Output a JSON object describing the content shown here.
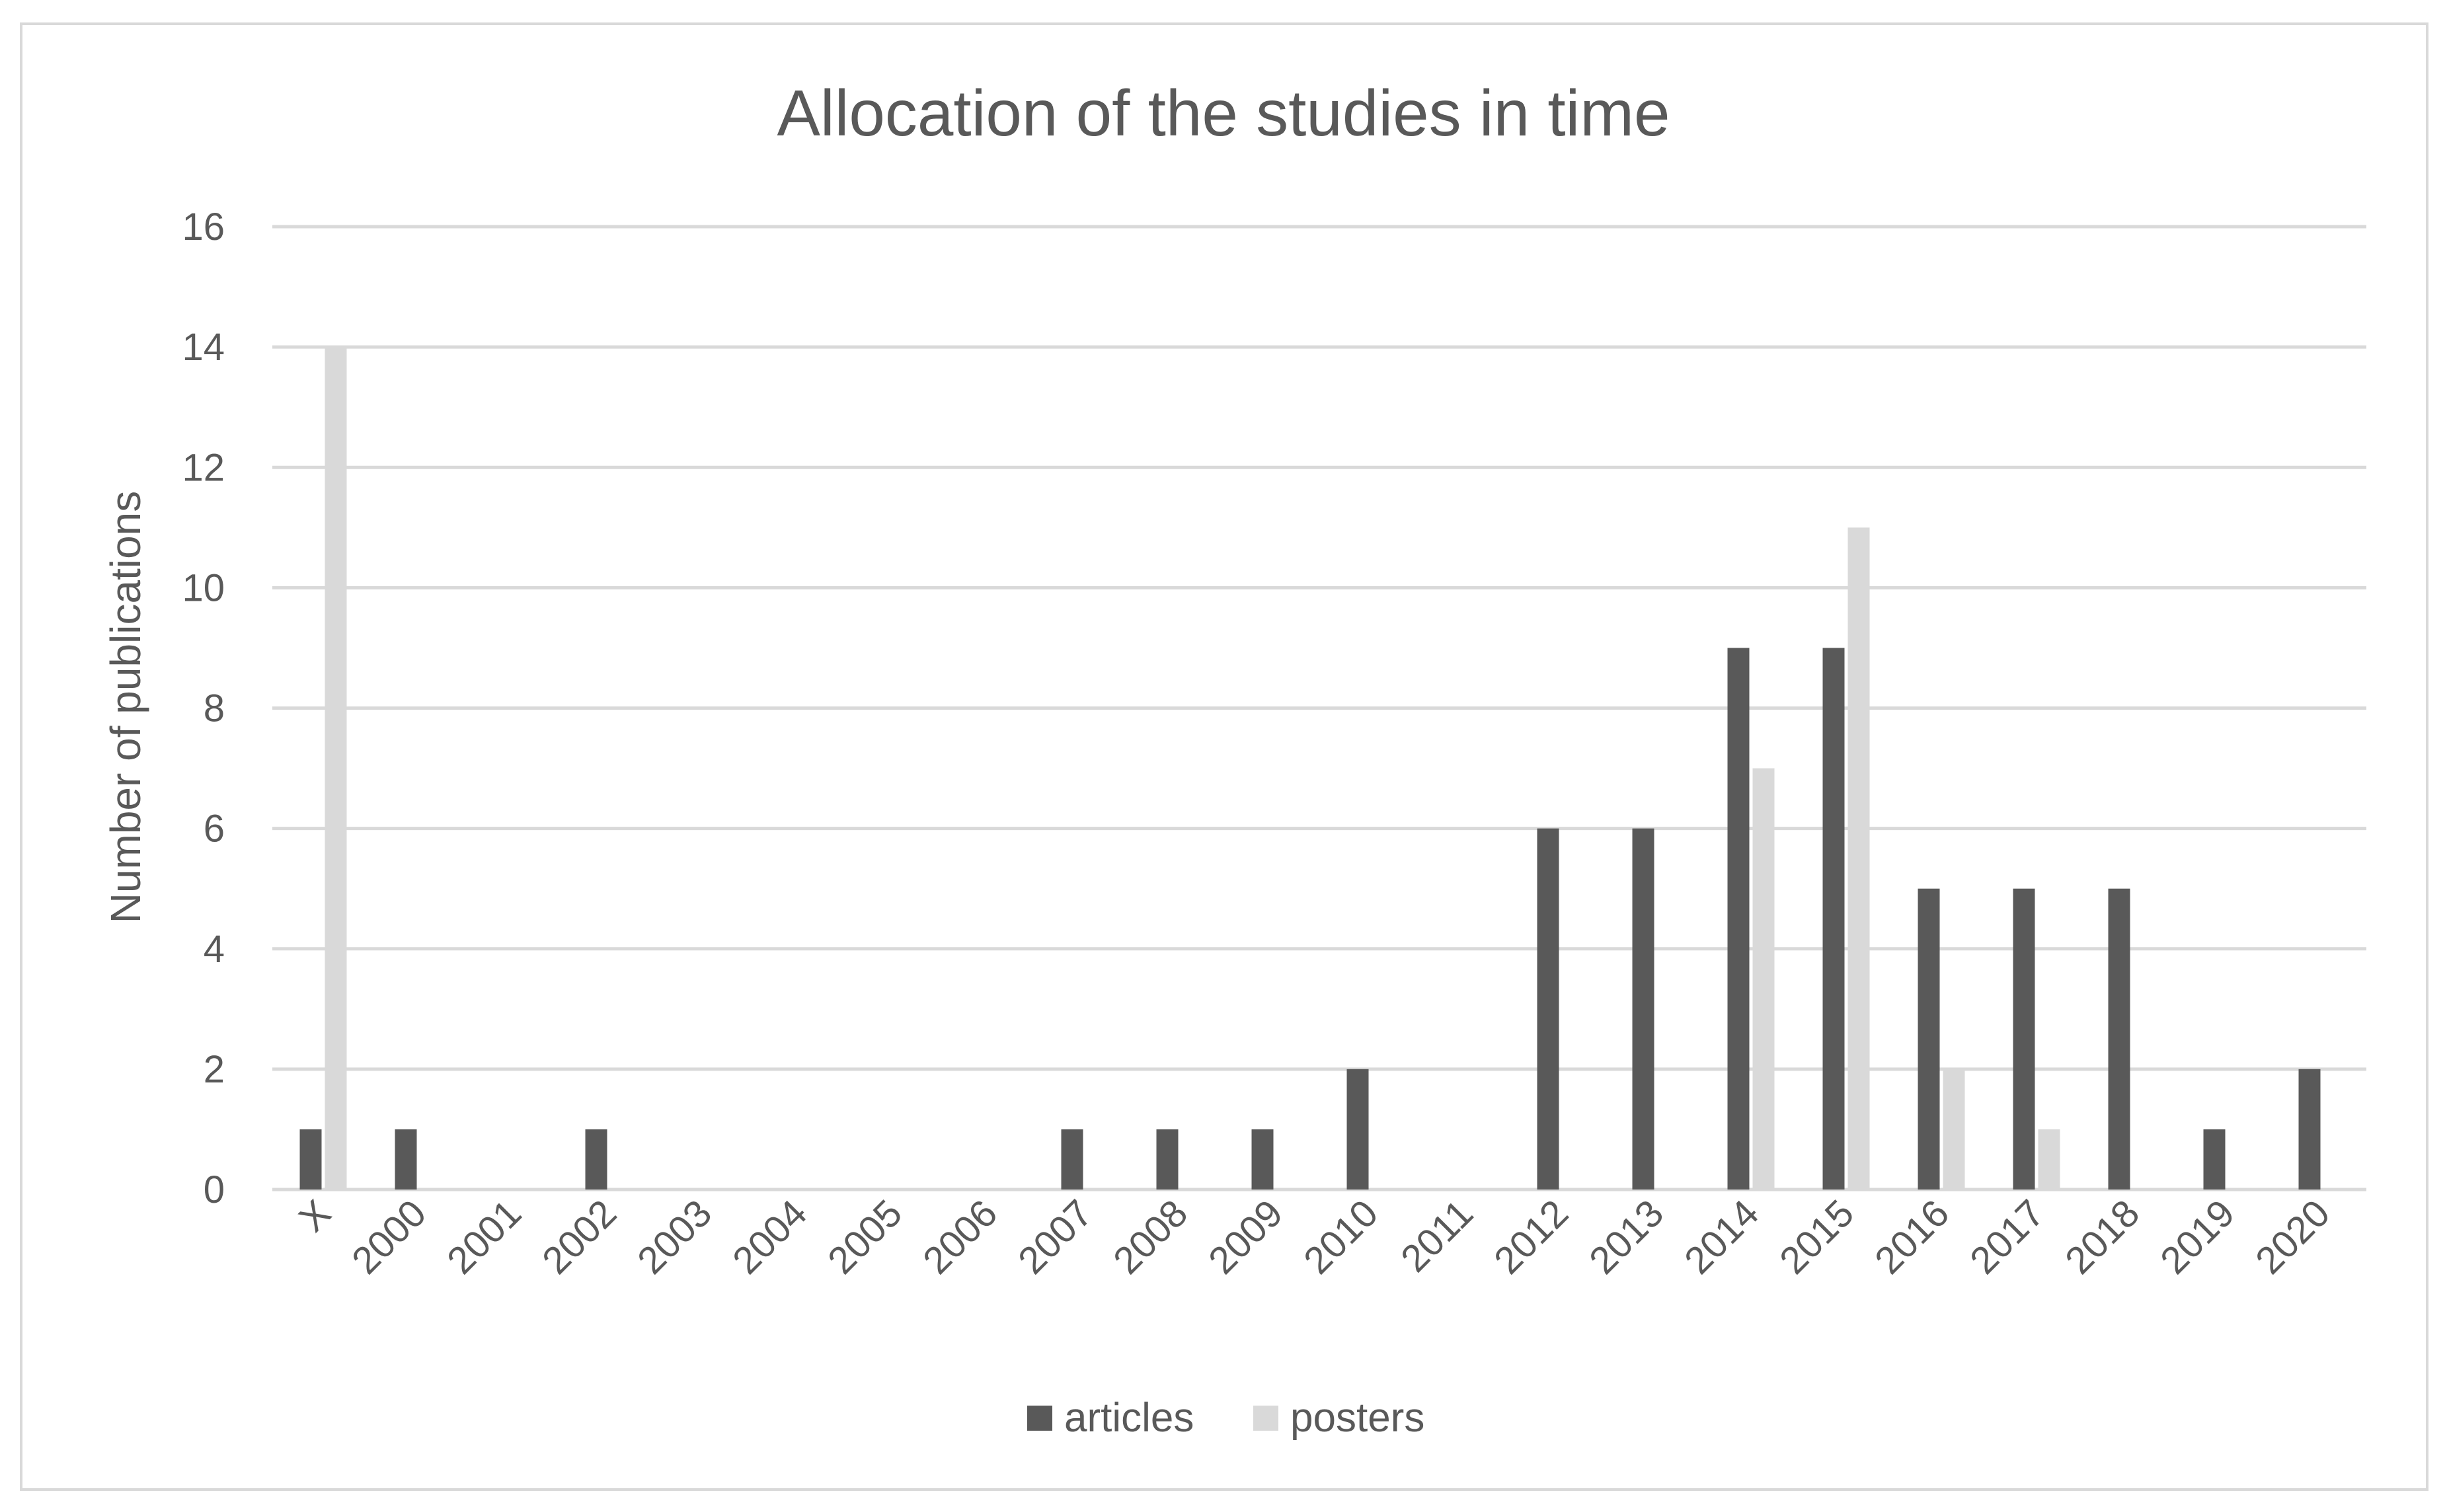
{
  "chart_data": {
    "type": "bar",
    "title": "Allocation of the studies in time",
    "xlabel": "",
    "ylabel": "Number of publications",
    "ylim": [
      0,
      16
    ],
    "yticks": [
      0,
      2,
      4,
      6,
      8,
      10,
      12,
      14,
      16
    ],
    "grid": true,
    "legend_position": "bottom",
    "categories": [
      "X",
      "2000",
      "2001",
      "2002",
      "2003",
      "2004",
      "2005",
      "2006",
      "2007",
      "2008",
      "2009",
      "2010",
      "2011",
      "2012",
      "2013",
      "2014",
      "2015",
      "2016",
      "2017",
      "2018",
      "2019",
      "2020"
    ],
    "series": [
      {
        "name": "articles",
        "color": "#595959",
        "values": [
          1,
          1,
          0,
          1,
          0,
          0,
          0,
          0,
          1,
          1,
          1,
          2,
          0,
          6,
          6,
          9,
          9,
          5,
          5,
          5,
          1,
          2
        ]
      },
      {
        "name": "posters",
        "color": "#d9d9d9",
        "values": [
          14,
          0,
          0,
          0,
          0,
          0,
          0,
          0,
          0,
          0,
          0,
          0,
          0,
          0,
          0,
          7,
          11,
          2,
          1,
          0,
          0,
          0
        ]
      }
    ]
  }
}
